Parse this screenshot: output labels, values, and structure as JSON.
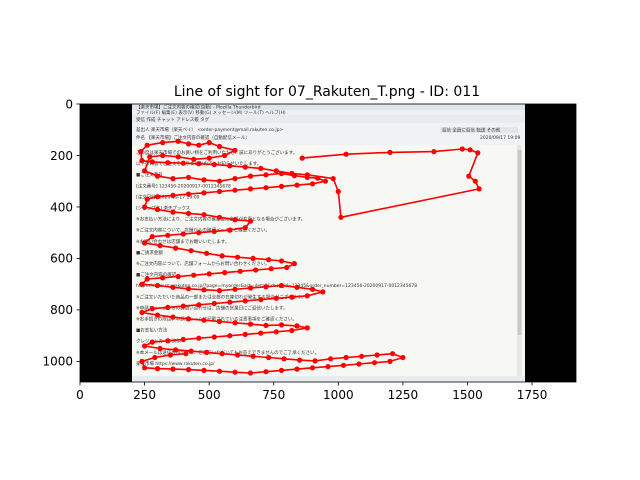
{
  "chart_data": {
    "type": "scatter",
    "title": "Line of sight for 07_Rakuten_T.png - ID: 011",
    "xlabel": "",
    "ylabel": "",
    "xlim": [
      0,
      1920
    ],
    "ylim": [
      1080,
      0
    ],
    "y_inverted": true,
    "x_ticks": [
      0,
      250,
      500,
      750,
      1000,
      1250,
      1500,
      1750
    ],
    "y_ticks": [
      0,
      200,
      400,
      600,
      800,
      1000
    ],
    "grid": false,
    "legend": "none",
    "series_color": "#ff0000",
    "background_image": {
      "description_visible": "email client window screenshot",
      "x_range": [
        0,
        1920
      ],
      "y_range": [
        0,
        1080
      ],
      "content_x_range": [
        200,
        1720
      ],
      "screen_text": {
        "app_title": "【楽天市場】ご注文内容の確認(自動) - Mozilla Thunderbird",
        "menu": "ファイル(F)  編集(E)  表示(V)  移動(G)  メッセージ(M)  ツール(T)  ヘルプ(H)",
        "toolbar": "受信  作成  チャット  アドレス帳  タグ",
        "from": "差出人 楽天市場（楽天ペイ） <order-payment@mail.rakuten.co.jp>",
        "subject": "件名 【楽天市場】ご注文内容の確認（自動配信メール）",
        "date": "2020/09/17 19:09",
        "reply_buttons": "返信  全員に返信  転送  その他",
        "body_lines": [
          "この度は楽天市場でのお買い物をご利用いただき、誠にありがとうございます。",
          "以下の内容でご注文を承りましたので、お知らせいたします。",
          "■ご注文番号",
          "[注文番号] 123456-20200917-0012345678",
          "[注文日時] 2020-09-17 19:09",
          "[ショップ名] 楽天ブックス",
          "※お支払い方法により、ご注文内容の確認後に金額が変更となる場合がございます。",
          "※ご注文内容について、店舗からの確認メールをご確認ください。",
          "※お問い合わせは店舗までお願いいたします。",
          "■ご請求金額",
          "※ご注文内容について、店舗フォームからお問い合わせください。",
          "■ご注文内容の確認",
          "https://order.my.rakuten.co.jp/?page=myorder&act=detail&shop_id=12345&order_number=123456-20200917-0012345678",
          "※ご注文いただいた商品の一部または全部の在庫切れが発生する場合がございます。",
          "※申請フォームからのお問い合わせは、店舗の営業日にご返信いたします。",
          "※お手続きの際は、申請フォームに記載されている注意事項をご確認ください。",
          "■お支払い方法",
          "クレジットカード決済",
          "※本メールは送信専用のため、ご返信いただいてもお答えできませんのでご了承ください。",
          "楽天市場 https://www.rakuten.co.jp/"
        ]
      }
    },
    "gaze_points": [
      [
        860,
        210
      ],
      [
        1030,
        195
      ],
      [
        1200,
        188
      ],
      [
        1370,
        185
      ],
      [
        1480,
        175
      ],
      [
        1510,
        178
      ],
      [
        1540,
        190
      ],
      [
        1505,
        280
      ],
      [
        1530,
        300
      ],
      [
        1545,
        330
      ],
      [
        1010,
        440
      ],
      [
        1000,
        340
      ],
      [
        980,
        290
      ],
      [
        880,
        275
      ],
      [
        820,
        270
      ],
      [
        760,
        260
      ],
      [
        700,
        250
      ],
      [
        640,
        245
      ],
      [
        580,
        240
      ],
      [
        520,
        235
      ],
      [
        460,
        232
      ],
      [
        400,
        230
      ],
      [
        340,
        228
      ],
      [
        280,
        225
      ],
      [
        240,
        220
      ],
      [
        235,
        185
      ],
      [
        260,
        160
      ],
      [
        320,
        150
      ],
      [
        380,
        145
      ],
      [
        420,
        155
      ],
      [
        460,
        160
      ],
      [
        500,
        150
      ],
      [
        540,
        165
      ],
      [
        600,
        180
      ],
      [
        560,
        200
      ],
      [
        500,
        210
      ],
      [
        440,
        215
      ],
      [
        380,
        205
      ],
      [
        320,
        200
      ],
      [
        270,
        205
      ],
      [
        250,
        260
      ],
      [
        300,
        280
      ],
      [
        360,
        290
      ],
      [
        420,
        285
      ],
      [
        480,
        295
      ],
      [
        540,
        300
      ],
      [
        600,
        290
      ],
      [
        660,
        280
      ],
      [
        720,
        275
      ],
      [
        780,
        270
      ],
      [
        830,
        278
      ],
      [
        880,
        285
      ],
      [
        920,
        288
      ],
      [
        950,
        300
      ],
      [
        900,
        310
      ],
      [
        840,
        315
      ],
      [
        780,
        320
      ],
      [
        720,
        325
      ],
      [
        660,
        330
      ],
      [
        600,
        335
      ],
      [
        540,
        340
      ],
      [
        480,
        345
      ],
      [
        420,
        350
      ],
      [
        360,
        355
      ],
      [
        300,
        360
      ],
      [
        260,
        370
      ],
      [
        250,
        400
      ],
      [
        300,
        410
      ],
      [
        360,
        420
      ],
      [
        420,
        425
      ],
      [
        480,
        430
      ],
      [
        540,
        440
      ],
      [
        600,
        450
      ],
      [
        660,
        455
      ],
      [
        640,
        480
      ],
      [
        580,
        490
      ],
      [
        520,
        495
      ],
      [
        460,
        500
      ],
      [
        400,
        505
      ],
      [
        340,
        510
      ],
      [
        280,
        515
      ],
      [
        250,
        540
      ],
      [
        310,
        550
      ],
      [
        370,
        560
      ],
      [
        430,
        570
      ],
      [
        490,
        580
      ],
      [
        550,
        590
      ],
      [
        610,
        595
      ],
      [
        670,
        600
      ],
      [
        730,
        605
      ],
      [
        780,
        610
      ],
      [
        830,
        620
      ],
      [
        800,
        635
      ],
      [
        740,
        640
      ],
      [
        680,
        645
      ],
      [
        620,
        650
      ],
      [
        560,
        655
      ],
      [
        500,
        660
      ],
      [
        440,
        665
      ],
      [
        380,
        670
      ],
      [
        320,
        675
      ],
      [
        260,
        680
      ],
      [
        240,
        700
      ],
      [
        300,
        705
      ],
      [
        360,
        712
      ],
      [
        420,
        718
      ],
      [
        480,
        722
      ],
      [
        540,
        725
      ],
      [
        600,
        720
      ],
      [
        660,
        715
      ],
      [
        720,
        710
      ],
      [
        780,
        705
      ],
      [
        840,
        712
      ],
      [
        900,
        720
      ],
      [
        940,
        730
      ],
      [
        880,
        745
      ],
      [
        820,
        750
      ],
      [
        760,
        755
      ],
      [
        700,
        760
      ],
      [
        640,
        765
      ],
      [
        580,
        770
      ],
      [
        520,
        775
      ],
      [
        460,
        780
      ],
      [
        400,
        785
      ],
      [
        340,
        790
      ],
      [
        280,
        795
      ],
      [
        240,
        810
      ],
      [
        300,
        820
      ],
      [
        360,
        828
      ],
      [
        420,
        835
      ],
      [
        480,
        840
      ],
      [
        540,
        845
      ],
      [
        600,
        850
      ],
      [
        660,
        855
      ],
      [
        720,
        860
      ],
      [
        780,
        858
      ],
      [
        840,
        862
      ],
      [
        880,
        870
      ],
      [
        820,
        880
      ],
      [
        760,
        885
      ],
      [
        700,
        890
      ],
      [
        640,
        895
      ],
      [
        580,
        900
      ],
      [
        520,
        905
      ],
      [
        460,
        910
      ],
      [
        400,
        915
      ],
      [
        340,
        920
      ],
      [
        280,
        925
      ],
      [
        250,
        940
      ],
      [
        310,
        950
      ],
      [
        370,
        955
      ],
      [
        430,
        960
      ],
      [
        490,
        965
      ],
      [
        550,
        970
      ],
      [
        610,
        975
      ],
      [
        670,
        980
      ],
      [
        730,
        985
      ],
      [
        790,
        990
      ],
      [
        850,
        995
      ],
      [
        910,
        998
      ],
      [
        970,
        990
      ],
      [
        1030,
        985
      ],
      [
        1090,
        980
      ],
      [
        1150,
        975
      ],
      [
        1210,
        970
      ],
      [
        1250,
        985
      ],
      [
        1200,
        1000
      ],
      [
        1140,
        1005
      ],
      [
        1080,
        1010
      ],
      [
        1020,
        1015
      ],
      [
        960,
        1020
      ],
      [
        900,
        1025
      ],
      [
        840,
        1030
      ],
      [
        780,
        1035
      ],
      [
        720,
        1040
      ],
      [
        660,
        1045
      ],
      [
        600,
        1042
      ],
      [
        540,
        1038
      ],
      [
        480,
        1035
      ],
      [
        420,
        1032
      ],
      [
        360,
        1030
      ],
      [
        300,
        1028
      ],
      [
        250,
        1025
      ],
      [
        240,
        1000
      ],
      [
        290,
        985
      ],
      [
        350,
        975
      ],
      [
        410,
        970
      ]
    ]
  }
}
